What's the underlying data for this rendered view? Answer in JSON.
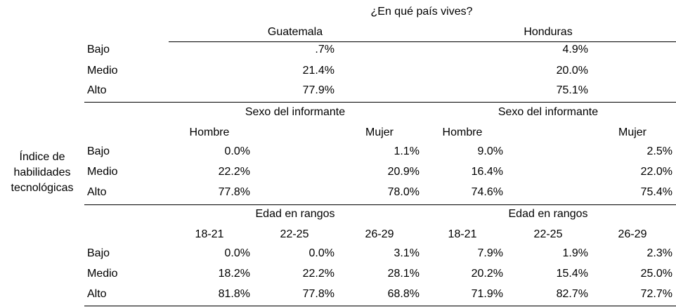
{
  "title": "¿En qué país vives?",
  "row_variable": [
    "Índice de",
    "habilidades",
    "tecnológicas"
  ],
  "row_labels": [
    "Bajo",
    "Medio",
    "Alto"
  ],
  "country": {
    "columns": [
      "Guatemala",
      "Honduras"
    ],
    "values": [
      [
        ".7%",
        "4.9%"
      ],
      [
        "21.4%",
        "20.0%"
      ],
      [
        "77.9%",
        "75.1%"
      ]
    ]
  },
  "sex": {
    "header": "Sexo del informante",
    "columns": [
      "Hombre",
      "Mujer",
      "Hombre",
      "Mujer"
    ],
    "values": [
      [
        "0.0%",
        "1.1%",
        "9.0%",
        "2.5%"
      ],
      [
        "22.2%",
        "20.9%",
        "16.4%",
        "22.0%"
      ],
      [
        "77.8%",
        "78.0%",
        "74.6%",
        "75.4%"
      ]
    ]
  },
  "age": {
    "header": "Edad en rangos",
    "columns": [
      "18-21",
      "22-25",
      "26-29",
      "18-21",
      "22-25",
      "26-29"
    ],
    "values": [
      [
        "0.0%",
        "0.0%",
        "3.1%",
        "7.9%",
        "1.9%",
        "2.3%"
      ],
      [
        "18.2%",
        "22.2%",
        "28.1%",
        "20.2%",
        "15.4%",
        "25.0%"
      ],
      [
        "81.8%",
        "77.8%",
        "68.8%",
        "71.9%",
        "82.7%",
        "72.7%"
      ]
    ]
  }
}
